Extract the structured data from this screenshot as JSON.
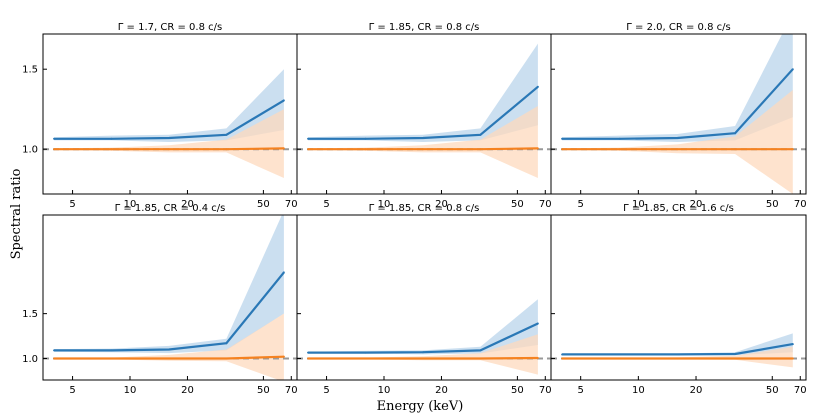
{
  "figure": {
    "ylabel": "Spectral ratio",
    "xlabel": "Energy (keV)"
  },
  "colors": {
    "blue": "#2a78b6",
    "blue_band": "#c5dcee",
    "orange": "#f58220",
    "orange_band": "#fdd9bd",
    "overlap_band": "#d8c6bd",
    "ref_line": "#999999"
  },
  "chart_data": [
    {
      "type": "line",
      "title": "Γ = 1.7,  CR = 0.8 c/s",
      "xscale": "log",
      "xlim": [
        3.5,
        75
      ],
      "ylim": [
        0.72,
        1.72
      ],
      "xticks": [
        5,
        10,
        20,
        50,
        70
      ],
      "yticks": [
        1.0,
        1.5
      ],
      "x": [
        4,
        8,
        16,
        32,
        64
      ],
      "series": [
        {
          "color": "blue",
          "values": [
            1.065,
            1.065,
            1.07,
            1.09,
            1.305
          ],
          "lower": [
            1.055,
            1.055,
            1.045,
            1.055,
            1.12
          ],
          "upper": [
            1.075,
            1.085,
            1.09,
            1.13,
            1.5
          ]
        },
        {
          "color": "orange",
          "values": [
            1.0,
            1.0,
            1.0,
            1.0,
            1.005
          ],
          "lower": [
            0.995,
            0.99,
            0.98,
            0.98,
            0.82
          ],
          "upper": [
            1.005,
            1.01,
            1.025,
            1.06,
            1.25
          ]
        }
      ],
      "reference_line": 1.0
    },
    {
      "type": "line",
      "title": "Γ = 1.85,  CR = 0.8 c/s",
      "xscale": "log",
      "xlim": [
        3.5,
        75
      ],
      "ylim": [
        0.72,
        1.72
      ],
      "xticks": [
        5,
        10,
        20,
        50,
        70
      ],
      "yticks": [
        1.0,
        1.5
      ],
      "x": [
        4,
        8,
        16,
        32,
        64
      ],
      "series": [
        {
          "color": "blue",
          "values": [
            1.065,
            1.065,
            1.07,
            1.09,
            1.39
          ],
          "lower": [
            1.055,
            1.055,
            1.045,
            1.055,
            1.15
          ],
          "upper": [
            1.075,
            1.085,
            1.09,
            1.13,
            1.66
          ]
        },
        {
          "color": "orange",
          "values": [
            1.0,
            1.0,
            1.0,
            1.0,
            1.005
          ],
          "lower": [
            0.995,
            0.99,
            0.98,
            0.98,
            0.82
          ],
          "upper": [
            1.005,
            1.01,
            1.025,
            1.06,
            1.27
          ]
        }
      ],
      "reference_line": 1.0
    },
    {
      "type": "line",
      "title": "Γ = 2.0,  CR = 0.8 c/s",
      "xscale": "log",
      "xlim": [
        3.5,
        75
      ],
      "ylim": [
        0.72,
        1.72
      ],
      "xticks": [
        5,
        10,
        20,
        50,
        70
      ],
      "yticks": [
        1.0,
        1.5
      ],
      "x": [
        4,
        8,
        16,
        32,
        64
      ],
      "series": [
        {
          "color": "blue",
          "values": [
            1.065,
            1.065,
            1.07,
            1.1,
            1.5
          ],
          "lower": [
            1.055,
            1.055,
            1.045,
            1.055,
            1.2
          ],
          "upper": [
            1.075,
            1.085,
            1.095,
            1.145,
            1.85
          ]
        },
        {
          "color": "orange",
          "values": [
            1.0,
            1.0,
            1.0,
            1.0,
            1.0
          ],
          "lower": [
            0.995,
            0.99,
            0.975,
            0.97,
            0.72
          ],
          "upper": [
            1.005,
            1.01,
            1.03,
            1.08,
            1.37
          ]
        }
      ],
      "reference_line": 1.0
    },
    {
      "type": "line",
      "title": "Γ = 1.85,  CR = 0.4 c/s",
      "xscale": "log",
      "xlim": [
        3.5,
        75
      ],
      "ylim": [
        0.76,
        2.6
      ],
      "xticks": [
        5,
        10,
        20,
        50,
        70
      ],
      "yticks": [
        1.0,
        1.5
      ],
      "x": [
        4,
        8,
        16,
        32,
        64
      ],
      "series": [
        {
          "color": "blue",
          "values": [
            1.09,
            1.09,
            1.1,
            1.17,
            1.96
          ],
          "lower": [
            1.075,
            1.07,
            1.06,
            1.09,
            1.5
          ],
          "upper": [
            1.105,
            1.11,
            1.14,
            1.22,
            2.65
          ]
        },
        {
          "color": "orange",
          "values": [
            1.0,
            1.0,
            1.0,
            1.0,
            1.02
          ],
          "lower": [
            0.995,
            0.99,
            0.975,
            0.97,
            0.74
          ],
          "upper": [
            1.005,
            1.01,
            1.04,
            1.1,
            1.5
          ]
        }
      ],
      "reference_line": 1.0
    },
    {
      "type": "line",
      "title": "Γ = 1.85,  CR = 0.8 c/s",
      "xscale": "log",
      "xlim": [
        3.5,
        75
      ],
      "ylim": [
        0.76,
        2.6
      ],
      "xticks": [
        5,
        10,
        20,
        50,
        70
      ],
      "yticks": [
        1.0,
        1.5
      ],
      "x": [
        4,
        8,
        16,
        32,
        64
      ],
      "series": [
        {
          "color": "blue",
          "values": [
            1.065,
            1.065,
            1.07,
            1.09,
            1.39
          ],
          "lower": [
            1.055,
            1.055,
            1.045,
            1.055,
            1.15
          ],
          "upper": [
            1.075,
            1.085,
            1.09,
            1.13,
            1.66
          ]
        },
        {
          "color": "orange",
          "values": [
            1.0,
            1.0,
            1.0,
            1.0,
            1.005
          ],
          "lower": [
            0.995,
            0.99,
            0.98,
            0.98,
            0.82
          ],
          "upper": [
            1.005,
            1.01,
            1.025,
            1.06,
            1.27
          ]
        }
      ],
      "reference_line": 1.0
    },
    {
      "type": "line",
      "title": "Γ = 1.85,  CR = 1.6 c/s",
      "xscale": "log",
      "xlim": [
        3.5,
        75
      ],
      "ylim": [
        0.76,
        2.6
      ],
      "xticks": [
        5,
        10,
        20,
        50,
        70
      ],
      "yticks": [
        1.0,
        1.5
      ],
      "x": [
        4,
        8,
        16,
        32,
        64
      ],
      "series": [
        {
          "color": "blue",
          "values": [
            1.045,
            1.045,
            1.045,
            1.05,
            1.16
          ],
          "lower": [
            1.04,
            1.04,
            1.035,
            1.035,
            1.07
          ],
          "upper": [
            1.05,
            1.05,
            1.055,
            1.07,
            1.28
          ]
        },
        {
          "color": "orange",
          "values": [
            1.0,
            1.0,
            1.0,
            1.0,
            1.0
          ],
          "lower": [
            0.997,
            0.995,
            0.99,
            0.985,
            0.9
          ],
          "upper": [
            1.003,
            1.005,
            1.012,
            1.03,
            1.13
          ]
        }
      ],
      "reference_line": 1.0
    }
  ]
}
